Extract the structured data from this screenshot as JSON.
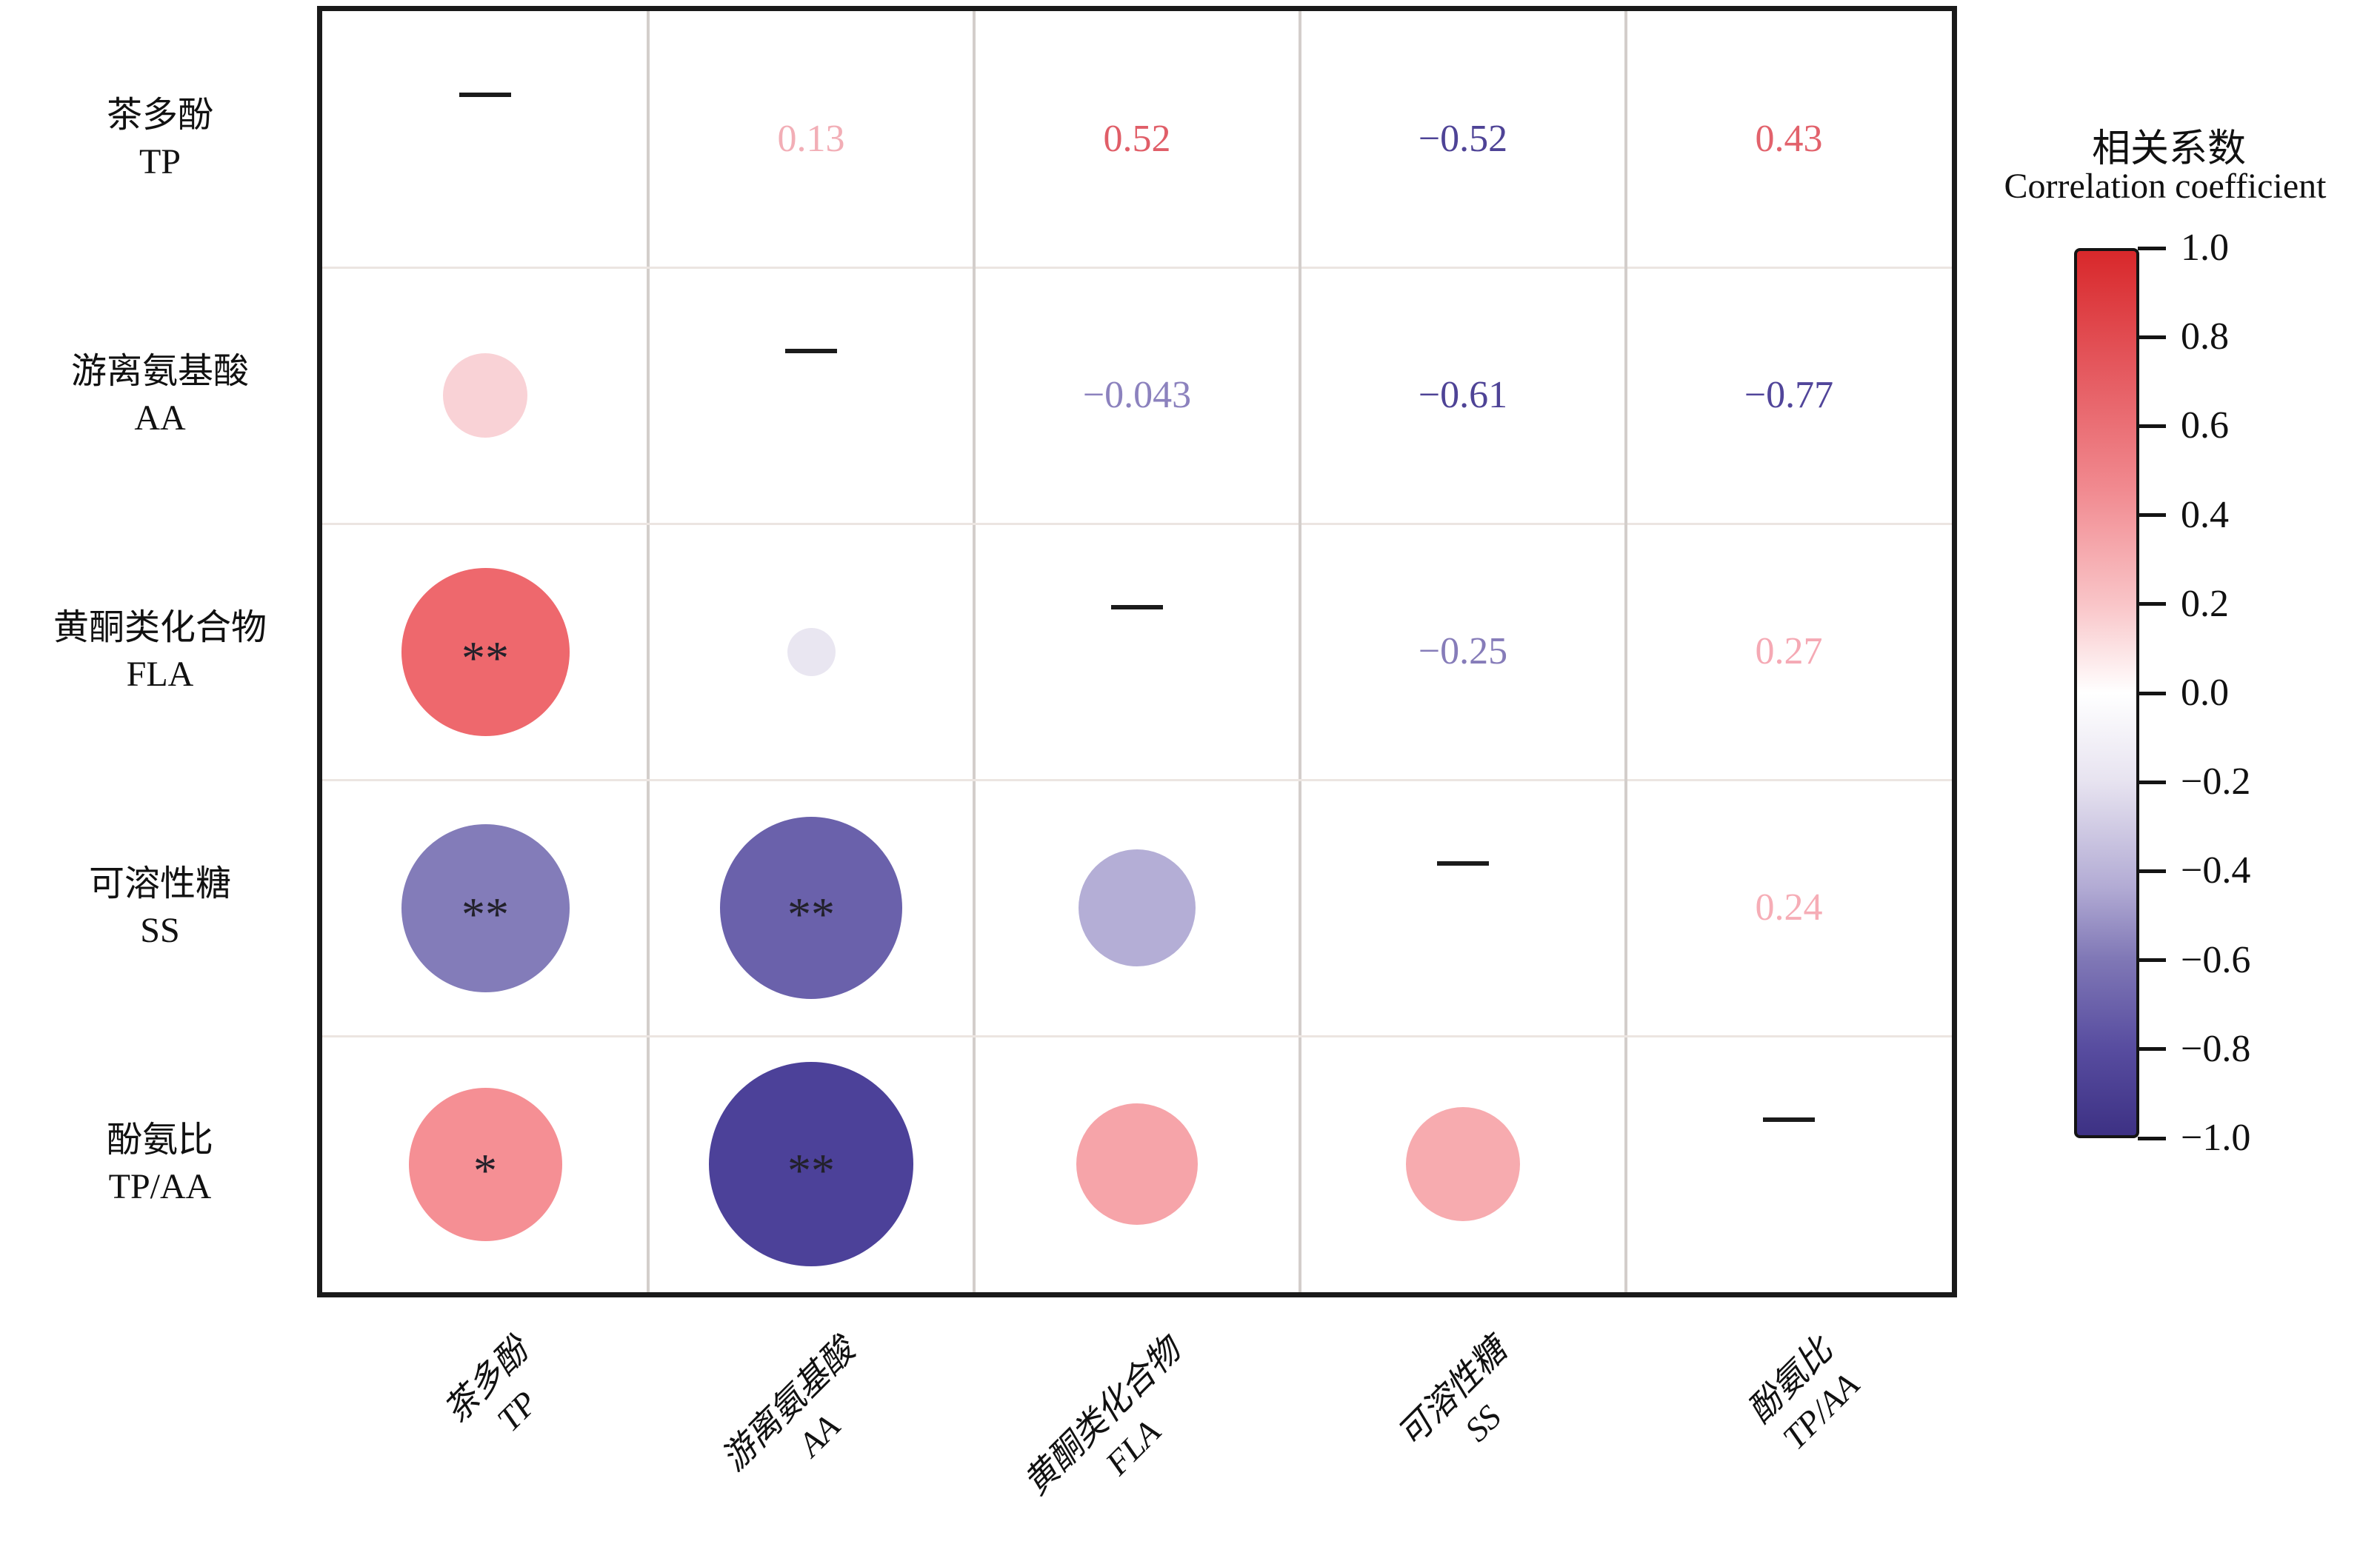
{
  "figure": {
    "legend_title_zh": "相关系数",
    "legend_title_en": "Correlation coefficient"
  },
  "chart_data": {
    "type": "heatmap",
    "subtype": "correlation-matrix-bubble",
    "layout_hint": "lower triangle = bubbles sized/colored by |r|, upper triangle = numeric r values, diagonal = dash marks, colorbar legend at right",
    "variables": [
      {
        "name_zh": "茶多酚",
        "abbr": "TP"
      },
      {
        "name_zh": "游离氨基酸",
        "abbr": "AA"
      },
      {
        "name_zh": "黄酮类化合物",
        "abbr": "FLA"
      },
      {
        "name_zh": "可溶性糖",
        "abbr": "SS"
      },
      {
        "name_zh": "酚氨比",
        "abbr": "TP/AA"
      }
    ],
    "matrix": [
      [
        1,
        0.13,
        0.52,
        -0.52,
        0.43
      ],
      [
        0.13,
        1,
        -0.043,
        -0.61,
        -0.77
      ],
      [
        0.52,
        -0.043,
        1,
        -0.25,
        0.27
      ],
      [
        -0.52,
        -0.61,
        -0.25,
        1,
        0.24
      ],
      [
        0.43,
        -0.77,
        0.27,
        0.24,
        1
      ]
    ],
    "diagonal_marker": "—",
    "upper_triangle_values": [
      {
        "row": 0,
        "col": 1,
        "label": "0.13",
        "color": "#F2AEB6"
      },
      {
        "row": 0,
        "col": 2,
        "label": "0.52",
        "color": "#E05E68"
      },
      {
        "row": 0,
        "col": 3,
        "label": "−0.52",
        "color": "#4E4396"
      },
      {
        "row": 0,
        "col": 4,
        "label": "0.43",
        "color": "#E2626C"
      },
      {
        "row": 1,
        "col": 2,
        "label": "−0.043",
        "color": "#8C82BE"
      },
      {
        "row": 1,
        "col": 3,
        "label": "−0.61",
        "color": "#4E4396"
      },
      {
        "row": 1,
        "col": 4,
        "label": "−0.77",
        "color": "#51459A"
      },
      {
        "row": 2,
        "col": 3,
        "label": "−0.25",
        "color": "#867CB9"
      },
      {
        "row": 2,
        "col": 4,
        "label": "0.27",
        "color": "#F5A9B4"
      },
      {
        "row": 3,
        "col": 4,
        "label": "0.24",
        "color": "#F6ADB6"
      }
    ],
    "lower_triangle_bubbles": [
      {
        "row": 1,
        "col": 0,
        "value": 0.13,
        "fill": "#F9D2D6",
        "stars": ""
      },
      {
        "row": 2,
        "col": 0,
        "value": 0.52,
        "fill": "#EE686D",
        "stars": "**"
      },
      {
        "row": 2,
        "col": 1,
        "value": -0.043,
        "fill": "#E9E6F1",
        "stars": ""
      },
      {
        "row": 3,
        "col": 0,
        "value": -0.52,
        "fill": "#837CB9",
        "stars": "**"
      },
      {
        "row": 3,
        "col": 1,
        "value": -0.61,
        "fill": "#6A61AB",
        "stars": "**"
      },
      {
        "row": 3,
        "col": 2,
        "value": -0.25,
        "fill": "#B4AED6",
        "stars": ""
      },
      {
        "row": 4,
        "col": 0,
        "value": 0.43,
        "fill": "#F58F94",
        "stars": "*"
      },
      {
        "row": 4,
        "col": 1,
        "value": -0.77,
        "fill": "#4C4199",
        "stars": "**"
      },
      {
        "row": 4,
        "col": 2,
        "value": 0.27,
        "fill": "#F6A4A9",
        "stars": ""
      },
      {
        "row": 4,
        "col": 3,
        "value": 0.24,
        "fill": "#F7ABAF",
        "stars": ""
      }
    ],
    "legend": {
      "title_zh": "相关系数",
      "title_en": "Correlation coefficient",
      "range": [
        -1,
        1
      ],
      "tick_labels": [
        "1.0",
        "0.8",
        "0.6",
        "0.4",
        "0.2",
        "0.0",
        "−0.2",
        "−0.4",
        "−0.6",
        "−0.8",
        "−1.0"
      ],
      "tick_values": [
        1,
        0.8,
        0.6,
        0.4,
        0.2,
        0,
        -0.2,
        -0.4,
        -0.6,
        -0.8,
        -1
      ],
      "gradient_stops": [
        [
          "#D8282B",
          0
        ],
        [
          "#E4575D",
          13
        ],
        [
          "#F18A90",
          27
        ],
        [
          "#F9C5C8",
          40
        ],
        [
          "#FFFFFF",
          50
        ],
        [
          "#E7E3F0",
          60
        ],
        [
          "#B2ABD4",
          72
        ],
        [
          "#8078B6",
          80
        ],
        [
          "#584DA0",
          90
        ],
        [
          "#3D3184",
          100
        ]
      ],
      "top_color": "#D8282B",
      "mid_color": "#FFFFFF",
      "bottom_color": "#3D3184"
    }
  }
}
